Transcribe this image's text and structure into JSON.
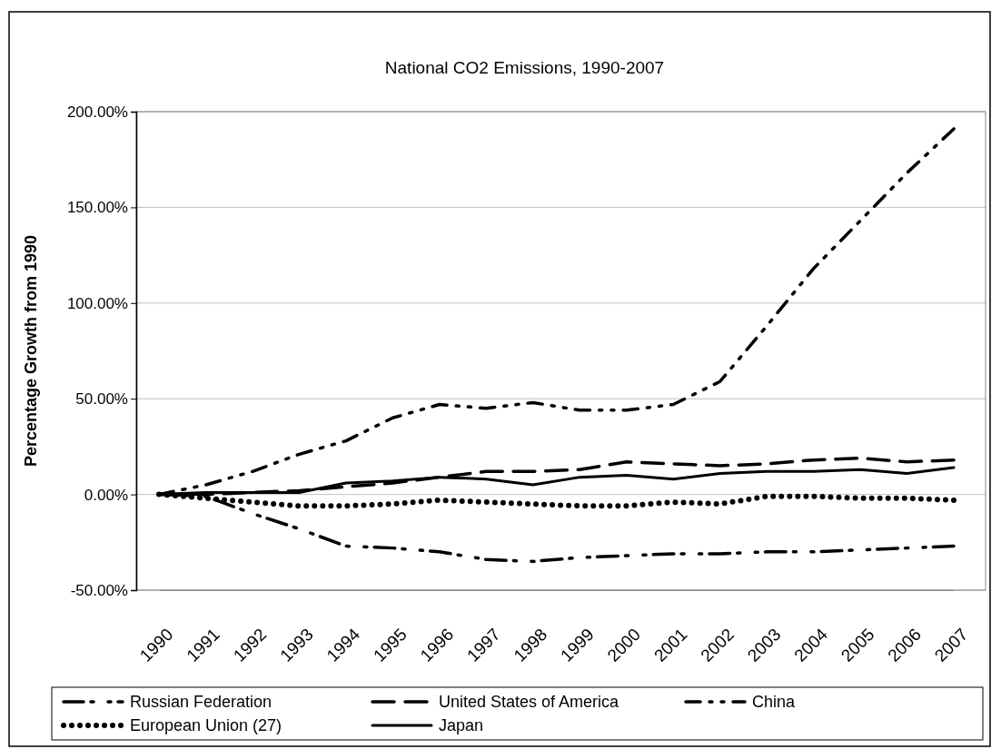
{
  "chart_data": {
    "type": "line",
    "title": "National CO2 Emissions, 1990-2007",
    "ylabel": "Percentage Growth from 1990",
    "categories": [
      "1990",
      "1991",
      "1992",
      "1993",
      "1994",
      "1995",
      "1996",
      "1997",
      "1998",
      "1999",
      "2000",
      "2001",
      "2002",
      "2003",
      "2004",
      "2005",
      "2006",
      "2007"
    ],
    "series": [
      {
        "name": "Russian Federation",
        "color": "#000000",
        "line_style": "dashed",
        "values": [
          0,
          -1,
          -10,
          -18,
          -27,
          -28,
          -30,
          -34,
          -35,
          -33,
          -32,
          -31,
          -31,
          -30,
          -30,
          -29,
          -28,
          -27
        ]
      },
      {
        "name": "United States of America",
        "color": "#000000",
        "line_style": "dashed",
        "values": [
          0,
          0,
          1,
          2,
          4,
          6,
          9,
          12,
          12,
          13,
          17,
          16,
          15,
          16,
          18,
          19,
          17,
          18
        ]
      },
      {
        "name": "China",
        "color": "#000000",
        "line_style": "dashed",
        "values": [
          0,
          5,
          12,
          21,
          28,
          40,
          47,
          45,
          48,
          44,
          44,
          47,
          59,
          88,
          118,
          143,
          168,
          191
        ]
      },
      {
        "name": "European Union (27)",
        "color": "#000000",
        "line_style": "dotted",
        "values": [
          0,
          -2,
          -4,
          -6,
          -6,
          -5,
          -3,
          -4,
          -5,
          -6,
          -6,
          -4,
          -5,
          -1,
          -1,
          -2,
          -2,
          -3
        ]
      },
      {
        "name": "Japan",
        "color": "#000000",
        "line_style": "solid",
        "values": [
          0,
          1,
          1,
          1,
          6,
          7,
          9,
          8,
          5,
          9,
          10,
          8,
          11,
          12,
          12,
          13,
          11,
          14
        ]
      }
    ],
    "ylim": [
      -50,
      200
    ],
    "yticks": [
      {
        "value": -50,
        "label": "-50.00%"
      },
      {
        "value": 0,
        "label": "0.00%"
      },
      {
        "value": 50,
        "label": "50.00%"
      },
      {
        "value": 100,
        "label": "100.00%"
      },
      {
        "value": 150,
        "label": "150.00%"
      },
      {
        "value": 200,
        "label": "200.00%"
      }
    ],
    "grid": "y",
    "legend": "bottom",
    "marker": "none"
  }
}
